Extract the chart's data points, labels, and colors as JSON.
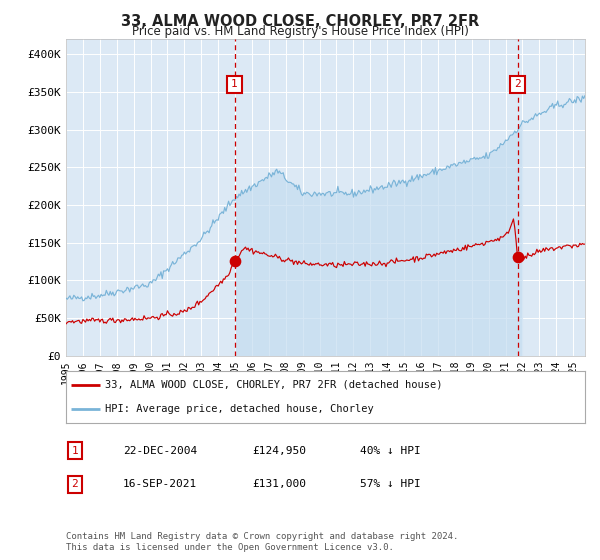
{
  "title": "33, ALMA WOOD CLOSE, CHORLEY, PR7 2FR",
  "subtitle": "Price paid vs. HM Land Registry's House Price Index (HPI)",
  "background_color": "#ffffff",
  "plot_bg_color": "#dce9f5",
  "grid_color": "#ffffff",
  "hpi_color": "#7ab4d8",
  "price_color": "#cc0000",
  "marker_color": "#cc0000",
  "dashed_line_color": "#cc0000",
  "ylim": [
    0,
    420000
  ],
  "xlim_start": 1995.0,
  "xlim_end": 2025.7,
  "purchase1_year": 2004.97,
  "purchase1_price": 124950,
  "purchase2_year": 2021.71,
  "purchase2_price": 131000,
  "legend_label_price": "33, ALMA WOOD CLOSE, CHORLEY, PR7 2FR (detached house)",
  "legend_label_hpi": "HPI: Average price, detached house, Chorley",
  "note1_label": "1",
  "note1_date": "22-DEC-2004",
  "note1_price": "£124,950",
  "note1_pct": "40% ↓ HPI",
  "note2_label": "2",
  "note2_date": "16-SEP-2021",
  "note2_price": "£131,000",
  "note2_pct": "57% ↓ HPI",
  "footer": "Contains HM Land Registry data © Crown copyright and database right 2024.\nThis data is licensed under the Open Government Licence v3.0.",
  "yticks": [
    0,
    50000,
    100000,
    150000,
    200000,
    250000,
    300000,
    350000,
    400000
  ],
  "ytick_labels": [
    "£0",
    "£50K",
    "£100K",
    "£150K",
    "£200K",
    "£250K",
    "£300K",
    "£350K",
    "£400K"
  ]
}
